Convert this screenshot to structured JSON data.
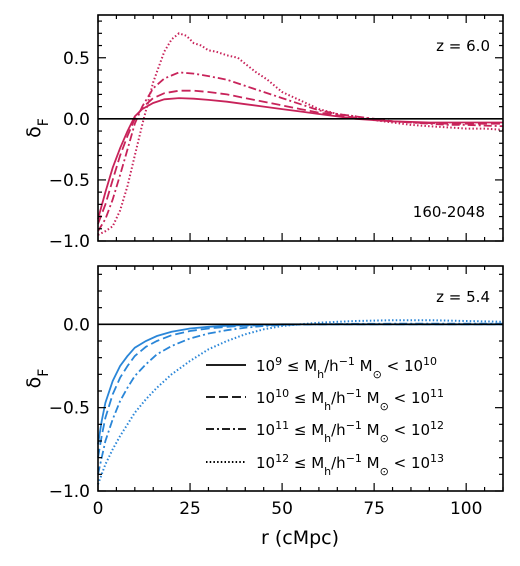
{
  "chart_data": [
    {
      "type": "line",
      "panel": "top",
      "ylabel": "δ_F",
      "xlim": [
        0,
        110
      ],
      "ylim": [
        -1.0,
        0.85
      ],
      "yticks": [
        -1.0,
        -0.5,
        0.0,
        0.5
      ],
      "ytick_labels": [
        "−1.0",
        "−0.5",
        "0.0",
        "0.5"
      ],
      "annotations": [
        "z = 6.0",
        "160-2048"
      ],
      "color": "#c8235a",
      "series": [
        {
          "style": "solid",
          "x": [
            0,
            2,
            4,
            6,
            8,
            10,
            12,
            15,
            18,
            22,
            26,
            30,
            35,
            40,
            45,
            50,
            55,
            60,
            65,
            70,
            75,
            80,
            85,
            90,
            95,
            100,
            105,
            110
          ],
          "y": [
            -0.82,
            -0.6,
            -0.4,
            -0.24,
            -0.1,
            0.02,
            0.08,
            0.13,
            0.16,
            0.17,
            0.165,
            0.155,
            0.14,
            0.12,
            0.1,
            0.08,
            0.06,
            0.04,
            0.02,
            0.0,
            -0.01,
            -0.02,
            -0.025,
            -0.03,
            -0.03,
            -0.03,
            -0.03,
            -0.03
          ]
        },
        {
          "style": "dashed",
          "x": [
            0,
            2,
            4,
            6,
            8,
            10,
            12,
            15,
            18,
            22,
            26,
            30,
            35,
            40,
            45,
            50,
            55,
            60,
            65,
            70,
            75,
            80,
            85,
            90,
            95,
            100,
            105,
            110
          ],
          "y": [
            -0.86,
            -0.7,
            -0.5,
            -0.3,
            -0.14,
            0.0,
            0.09,
            0.17,
            0.21,
            0.23,
            0.23,
            0.22,
            0.2,
            0.17,
            0.14,
            0.11,
            0.08,
            0.05,
            0.03,
            0.01,
            -0.01,
            -0.02,
            -0.03,
            -0.035,
            -0.04,
            -0.04,
            -0.04,
            -0.04
          ]
        },
        {
          "style": "dashdot",
          "x": [
            0,
            2,
            4,
            6,
            8,
            10,
            12,
            15,
            18,
            22,
            26,
            30,
            35,
            40,
            45,
            50,
            55,
            60,
            65,
            70,
            75,
            80,
            85,
            90,
            95,
            100,
            105,
            110
          ],
          "y": [
            -0.92,
            -0.82,
            -0.66,
            -0.46,
            -0.25,
            -0.04,
            0.1,
            0.25,
            0.33,
            0.38,
            0.37,
            0.35,
            0.32,
            0.27,
            0.22,
            0.17,
            0.12,
            0.07,
            0.04,
            0.02,
            0.0,
            -0.02,
            -0.03,
            -0.04,
            -0.05,
            -0.05,
            -0.055,
            -0.06
          ]
        },
        {
          "style": "dotted",
          "x": [
            0,
            2,
            4,
            6,
            8,
            10,
            12,
            15,
            18,
            20,
            22,
            24,
            26,
            28,
            30,
            32,
            35,
            38,
            40,
            43,
            46,
            50,
            55,
            60,
            65,
            70,
            75,
            80,
            85,
            90,
            95,
            100,
            105,
            110
          ],
          "y": [
            -0.95,
            -0.92,
            -0.88,
            -0.75,
            -0.55,
            -0.3,
            -0.05,
            0.3,
            0.55,
            0.65,
            0.7,
            0.68,
            0.62,
            0.6,
            0.56,
            0.55,
            0.52,
            0.5,
            0.45,
            0.38,
            0.32,
            0.22,
            0.15,
            0.08,
            0.04,
            0.02,
            -0.01,
            -0.03,
            -0.05,
            -0.06,
            -0.07,
            -0.08,
            -0.08,
            -0.09
          ]
        }
      ]
    },
    {
      "type": "line",
      "panel": "bottom",
      "xlabel": "r (cMpc)",
      "ylabel": "δ_F",
      "xlim": [
        0,
        110
      ],
      "ylim": [
        -1.0,
        0.35
      ],
      "xticks": [
        0,
        25,
        50,
        75,
        100
      ],
      "xtick_labels": [
        "0",
        "25",
        "50",
        "75",
        "100"
      ],
      "yticks": [
        -1.0,
        -0.5,
        0.0
      ],
      "ytick_labels": [
        "−1.0",
        "−0.5",
        "0.0"
      ],
      "annotations": [
        "z = 5.4"
      ],
      "color": "#2a86d8",
      "legend_position": "lower-right",
      "series": [
        {
          "style": "solid",
          "name": "10^9 ≤ M_h/h^−1 M_⊙ < 10^10",
          "x": [
            0,
            1,
            2,
            4,
            6,
            8,
            10,
            13,
            16,
            20,
            25,
            30,
            35,
            40,
            50,
            60,
            70,
            80,
            90,
            100,
            110
          ],
          "y": [
            -0.72,
            -0.58,
            -0.47,
            -0.34,
            -0.25,
            -0.19,
            -0.14,
            -0.1,
            -0.07,
            -0.045,
            -0.025,
            -0.015,
            -0.008,
            -0.004,
            0.0,
            0.0,
            0.0,
            0.0,
            0.0,
            0.0,
            0.0
          ]
        },
        {
          "style": "dashed",
          "name": "10^10 ≤ M_h/h^−1 M_⊙ < 10^11",
          "x": [
            0,
            1,
            2,
            4,
            6,
            8,
            10,
            13,
            16,
            20,
            25,
            30,
            35,
            40,
            50,
            60,
            70,
            80,
            90,
            100,
            110
          ],
          "y": [
            -0.8,
            -0.67,
            -0.56,
            -0.42,
            -0.32,
            -0.25,
            -0.19,
            -0.135,
            -0.1,
            -0.065,
            -0.04,
            -0.025,
            -0.015,
            -0.008,
            -0.002,
            0.0,
            0.0,
            0.0,
            0.0,
            0.0,
            0.0
          ]
        },
        {
          "style": "dashdot",
          "name": "10^11 ≤ M_h/h^−1 M_⊙ < 10^12",
          "x": [
            0,
            1,
            2,
            4,
            6,
            8,
            10,
            13,
            16,
            20,
            25,
            30,
            35,
            40,
            45,
            50,
            60,
            70,
            80,
            90,
            100,
            110
          ],
          "y": [
            -0.9,
            -0.8,
            -0.7,
            -0.57,
            -0.46,
            -0.38,
            -0.31,
            -0.24,
            -0.18,
            -0.13,
            -0.085,
            -0.055,
            -0.035,
            -0.02,
            -0.01,
            -0.004,
            0.0,
            0.003,
            0.004,
            0.004,
            0.004,
            0.004
          ]
        },
        {
          "style": "dotted",
          "name": "10^12 ≤ M_h/h^−1 M_⊙ < 10^13",
          "x": [
            0,
            1,
            2,
            4,
            6,
            8,
            10,
            13,
            16,
            20,
            25,
            30,
            35,
            40,
            45,
            50,
            55,
            60,
            65,
            70,
            80,
            90,
            100,
            110
          ],
          "y": [
            -0.96,
            -0.9,
            -0.84,
            -0.75,
            -0.67,
            -0.6,
            -0.53,
            -0.45,
            -0.38,
            -0.3,
            -0.22,
            -0.15,
            -0.1,
            -0.06,
            -0.03,
            -0.01,
            0.0,
            0.01,
            0.015,
            0.02,
            0.025,
            0.025,
            0.02,
            0.015
          ]
        }
      ],
      "legend": {
        "entries": [
          {
            "style": "solid",
            "pre": "10",
            "e1": "9",
            "mid": " ≤ M",
            "sub": "h",
            "mid2": "/h",
            "e2": "−1",
            "mid3": " M",
            "sun": "⊙",
            "mid4": " < 10",
            "e3": "10"
          },
          {
            "style": "dashed",
            "pre": "10",
            "e1": "10",
            "mid": " ≤ M",
            "sub": "h",
            "mid2": "/h",
            "e2": "−1",
            "mid3": " M",
            "sun": "⊙",
            "mid4": " < 10",
            "e3": "11"
          },
          {
            "style": "dashdot",
            "pre": "10",
            "e1": "11",
            "mid": " ≤ M",
            "sub": "h",
            "mid2": "/h",
            "e2": "−1",
            "mid3": " M",
            "sun": "⊙",
            "mid4": " < 10",
            "e3": "12"
          },
          {
            "style": "dotted",
            "pre": "10",
            "e1": "12",
            "mid": " ≤ M",
            "sub": "h",
            "mid2": "/h",
            "e2": "−1",
            "mid3": " M",
            "sun": "⊙",
            "mid4": " < 10",
            "e3": "13"
          }
        ]
      }
    }
  ],
  "ylabel_main": "δ",
  "ylabel_sub": "F"
}
